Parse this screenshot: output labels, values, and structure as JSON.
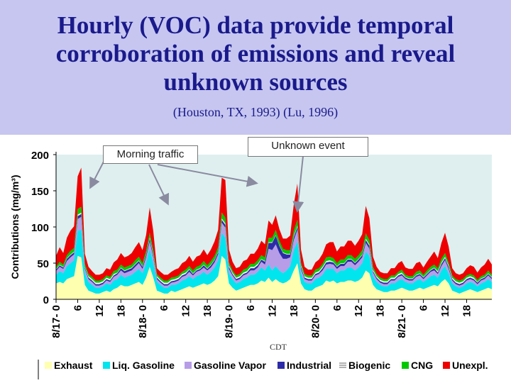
{
  "slide": {
    "title_lines": [
      "Hourly (VOC) data provide temporal",
      "corroboration of emissions and reveal",
      "unknown sources"
    ],
    "subtitle": "(Houston, TX, 1993) (Lu, 1996)",
    "callouts": {
      "morning": "Morning traffic",
      "unknown": "Unknown event"
    }
  },
  "colors": {
    "header_bg": "#c6c6f0",
    "title": "#1a1a8c",
    "plot_bg": "#dfefef",
    "Exhaust": "#ffffb0",
    "Liq. Gasoline": "#00e5ee",
    "Gasoline Vapor": "#b79de8",
    "Industrial": "#2c2ca8",
    "Biogenic": "#f8f8f8",
    "CNG": "#00c800",
    "Unexpl.": "#ee0000"
  },
  "chart_data": {
    "type": "area",
    "stacked": true,
    "title": "",
    "xlabel": "CDT",
    "ylabel": "Contributions (mg/m3)",
    "ylim": [
      0,
      200
    ],
    "yticks": [
      0,
      50,
      100,
      150,
      200
    ],
    "xticks": [
      "8/17- 0",
      "6",
      "12",
      "18",
      "8/18- 0",
      "6",
      "12",
      "18",
      "8/19- 0",
      "6",
      "12",
      "18",
      "8/20- 0",
      "6",
      "12",
      "18",
      "8/21- 0",
      "6",
      "12",
      "18"
    ],
    "legend_position": "bottom",
    "hours": [
      0,
      1,
      2,
      3,
      4,
      5,
      6,
      7,
      8,
      9,
      10,
      11,
      12,
      13,
      14,
      15,
      16,
      17,
      18,
      19,
      20,
      21,
      22,
      23,
      24,
      25,
      26,
      27,
      28,
      29,
      30,
      31,
      32,
      33,
      34,
      35,
      36,
      37,
      38,
      39,
      40,
      41,
      42,
      43,
      44,
      45,
      46,
      47,
      48,
      49,
      50,
      51,
      52,
      53,
      54,
      55,
      56,
      57,
      58,
      59,
      60,
      61,
      62,
      63,
      64,
      65,
      66,
      67,
      68,
      69,
      70,
      71,
      72,
      73,
      74,
      75,
      76,
      77,
      78,
      79,
      80,
      81,
      82,
      83,
      84,
      85,
      86,
      87,
      88,
      89,
      90,
      91,
      92,
      93,
      94,
      95,
      96,
      97,
      98,
      99,
      100,
      101,
      102,
      103,
      104,
      105,
      106,
      107,
      108,
      109,
      110,
      111,
      112,
      113,
      114,
      115,
      116,
      117,
      118,
      119,
      120,
      121
    ],
    "series": [
      {
        "name": "Exhaust",
        "values": [
          22,
          24,
          22,
          28,
          30,
          32,
          60,
          58,
          20,
          12,
          10,
          8,
          8,
          10,
          12,
          10,
          14,
          16,
          20,
          18,
          18,
          20,
          22,
          24,
          20,
          30,
          45,
          30,
          12,
          10,
          8,
          8,
          12,
          10,
          12,
          14,
          16,
          18,
          16,
          18,
          20,
          22,
          20,
          22,
          26,
          32,
          60,
          55,
          22,
          16,
          12,
          14,
          16,
          18,
          20,
          20,
          22,
          26,
          24,
          30,
          24,
          28,
          24,
          22,
          24,
          28,
          40,
          50,
          22,
          14,
          12,
          12,
          16,
          18,
          20,
          26,
          24,
          26,
          22,
          24,
          24,
          26,
          26,
          24,
          26,
          30,
          40,
          36,
          20,
          14,
          12,
          10,
          10,
          12,
          12,
          14,
          16,
          14,
          12,
          12,
          14,
          16,
          14,
          16,
          18,
          20,
          18,
          24,
          28,
          22,
          12,
          10,
          8,
          10,
          12,
          14,
          12,
          10,
          12,
          14,
          16,
          14
        ]
      },
      {
        "name": "Liq. Gasoline",
        "values": [
          12,
          15,
          14,
          18,
          20,
          22,
          35,
          38,
          16,
          12,
          10,
          8,
          8,
          8,
          10,
          10,
          12,
          12,
          14,
          12,
          14,
          14,
          16,
          18,
          16,
          20,
          25,
          20,
          12,
          10,
          8,
          8,
          8,
          10,
          10,
          12,
          12,
          14,
          12,
          14,
          14,
          16,
          14,
          16,
          18,
          22,
          32,
          30,
          14,
          12,
          10,
          10,
          12,
          12,
          14,
          14,
          16,
          18,
          16,
          18,
          16,
          18,
          16,
          14,
          16,
          18,
          28,
          30,
          14,
          10,
          10,
          10,
          12,
          12,
          14,
          16,
          18,
          16,
          14,
          16,
          16,
          18,
          18,
          16,
          18,
          20,
          26,
          24,
          12,
          10,
          8,
          8,
          8,
          10,
          10,
          12,
          12,
          10,
          10,
          10,
          12,
          12,
          10,
          12,
          14,
          14,
          12,
          16,
          18,
          14,
          10,
          8,
          8,
          8,
          10,
          10,
          10,
          8,
          10,
          10,
          12,
          10
        ]
      },
      {
        "name": "Gasoline Vapor",
        "values": [
          5,
          6,
          6,
          7,
          8,
          8,
          16,
          18,
          6,
          4,
          4,
          3,
          3,
          3,
          4,
          4,
          5,
          6,
          6,
          6,
          6,
          6,
          7,
          8,
          6,
          8,
          10,
          8,
          4,
          3,
          3,
          3,
          3,
          4,
          4,
          5,
          5,
          6,
          5,
          6,
          6,
          6,
          6,
          6,
          7,
          8,
          14,
          14,
          6,
          5,
          4,
          4,
          5,
          5,
          6,
          6,
          6,
          8,
          8,
          22,
          28,
          30,
          24,
          20,
          16,
          12,
          14,
          16,
          6,
          4,
          4,
          4,
          5,
          5,
          6,
          6,
          7,
          6,
          6,
          6,
          6,
          8,
          8,
          7,
          8,
          8,
          12,
          10,
          5,
          4,
          3,
          3,
          3,
          4,
          4,
          5,
          5,
          4,
          4,
          4,
          5,
          5,
          4,
          5,
          6,
          6,
          5,
          6,
          8,
          6,
          4,
          3,
          3,
          3,
          4,
          4,
          4,
          3,
          4,
          4,
          5,
          4
        ]
      },
      {
        "name": "Industrial",
        "values": [
          2,
          2,
          2,
          3,
          3,
          3,
          4,
          4,
          2,
          2,
          2,
          2,
          2,
          2,
          2,
          2,
          2,
          2,
          3,
          3,
          3,
          3,
          3,
          3,
          3,
          3,
          4,
          3,
          2,
          2,
          2,
          2,
          2,
          2,
          2,
          2,
          2,
          3,
          2,
          2,
          2,
          3,
          2,
          3,
          3,
          3,
          4,
          4,
          3,
          2,
          2,
          2,
          2,
          2,
          3,
          3,
          3,
          3,
          4,
          8,
          10,
          12,
          10,
          8,
          6,
          4,
          4,
          4,
          3,
          2,
          2,
          2,
          2,
          2,
          3,
          3,
          3,
          3,
          3,
          3,
          3,
          3,
          3,
          3,
          3,
          3,
          4,
          4,
          2,
          2,
          2,
          2,
          2,
          2,
          2,
          2,
          2,
          2,
          2,
          2,
          2,
          2,
          2,
          2,
          2,
          3,
          2,
          3,
          3,
          3,
          2,
          2,
          2,
          2,
          2,
          2,
          2,
          2,
          2,
          2,
          2,
          2
        ]
      },
      {
        "name": "Biogenic",
        "values": [
          1,
          1,
          1,
          1,
          1,
          1,
          2,
          2,
          1,
          2,
          2,
          2,
          2,
          2,
          2,
          2,
          2,
          1,
          1,
          1,
          1,
          1,
          1,
          1,
          1,
          1,
          2,
          2,
          2,
          2,
          2,
          2,
          2,
          2,
          2,
          2,
          2,
          1,
          1,
          1,
          1,
          1,
          1,
          1,
          1,
          1,
          2,
          2,
          2,
          2,
          2,
          2,
          2,
          2,
          2,
          2,
          2,
          1,
          1,
          1,
          1,
          1,
          1,
          1,
          1,
          1,
          2,
          2,
          2,
          2,
          2,
          2,
          2,
          2,
          2,
          2,
          2,
          1,
          1,
          1,
          1,
          1,
          1,
          1,
          1,
          1,
          2,
          2,
          2,
          2,
          2,
          2,
          2,
          2,
          2,
          2,
          2,
          1,
          1,
          1,
          1,
          1,
          1,
          1,
          1,
          1,
          2,
          2,
          2,
          2,
          2,
          2,
          2,
          2,
          2,
          2,
          2,
          1,
          1,
          1,
          1,
          1
        ]
      },
      {
        "name": "CNG",
        "values": [
          3,
          4,
          3,
          4,
          5,
          5,
          8,
          8,
          4,
          3,
          3,
          3,
          3,
          3,
          3,
          3,
          4,
          4,
          4,
          4,
          4,
          4,
          5,
          5,
          4,
          5,
          6,
          5,
          3,
          3,
          3,
          3,
          3,
          3,
          3,
          3,
          4,
          4,
          4,
          4,
          4,
          5,
          4,
          5,
          5,
          6,
          8,
          8,
          4,
          3,
          3,
          3,
          4,
          4,
          4,
          4,
          5,
          5,
          5,
          6,
          6,
          7,
          6,
          5,
          5,
          5,
          7,
          8,
          4,
          3,
          3,
          3,
          4,
          4,
          4,
          5,
          5,
          5,
          4,
          5,
          5,
          5,
          5,
          5,
          5,
          6,
          7,
          6,
          4,
          3,
          3,
          3,
          3,
          3,
          3,
          3,
          4,
          3,
          3,
          3,
          4,
          4,
          3,
          4,
          4,
          4,
          4,
          5,
          5,
          4,
          3,
          3,
          3,
          3,
          3,
          3,
          3,
          3,
          3,
          3,
          4,
          3
        ]
      },
      {
        "name": "Unexpl.",
        "values": [
          15,
          20,
          16,
          24,
          28,
          30,
          45,
          54,
          14,
          10,
          8,
          8,
          8,
          8,
          10,
          10,
          12,
          14,
          16,
          14,
          14,
          16,
          18,
          20,
          18,
          22,
          35,
          26,
          8,
          8,
          8,
          8,
          8,
          10,
          10,
          12,
          12,
          14,
          12,
          14,
          14,
          16,
          14,
          16,
          20,
          24,
          48,
          52,
          18,
          12,
          10,
          10,
          12,
          12,
          14,
          14,
          16,
          20,
          18,
          24,
          18,
          20,
          16,
          14,
          16,
          20,
          36,
          50,
          18,
          10,
          8,
          8,
          10,
          12,
          14,
          18,
          20,
          22,
          16,
          18,
          18,
          20,
          20,
          18,
          20,
          22,
          38,
          30,
          14,
          10,
          8,
          8,
          8,
          10,
          10,
          12,
          12,
          10,
          10,
          10,
          12,
          12,
          10,
          12,
          14,
          18,
          14,
          22,
          28,
          22,
          10,
          8,
          8,
          8,
          10,
          12,
          12,
          10,
          12,
          14,
          16,
          14
        ]
      }
    ]
  }
}
